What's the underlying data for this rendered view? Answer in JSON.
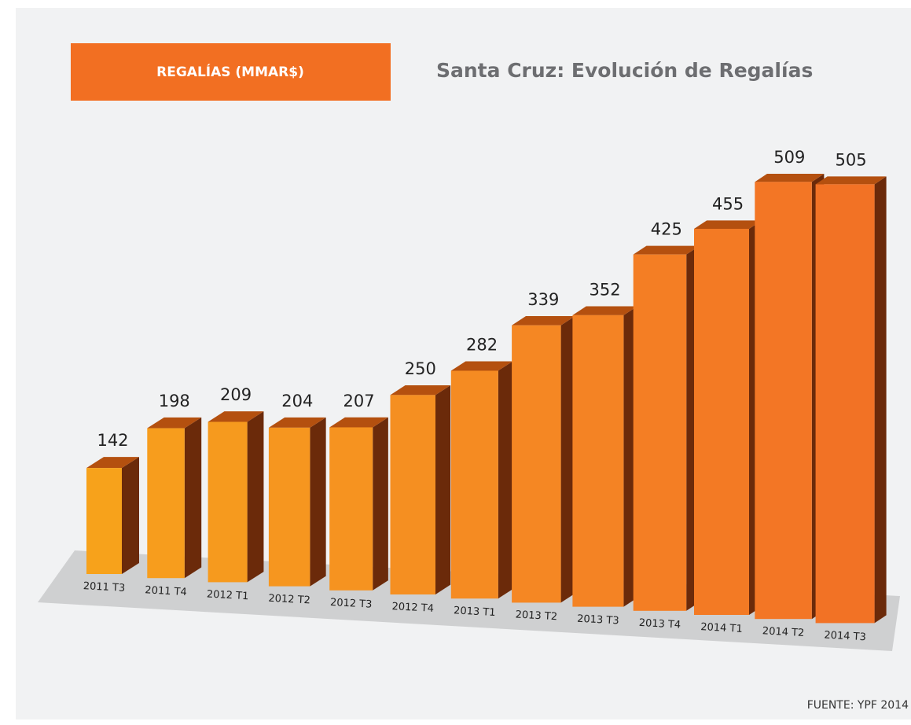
{
  "chart_data": {
    "type": "bar",
    "badge": "REGALÍAS (MMAR$)",
    "title": "Santa Cruz: Evolución de Regalías",
    "source": "FUENTE: YPF 2014",
    "categories": [
      "2011 T3",
      "2011 T4",
      "2012 T1",
      "2012 T2",
      "2012 T3",
      "2012 T4",
      "2013 T1",
      "2013 T2",
      "2013 T3",
      "2013 T4",
      "2014 T1",
      "2014 T2",
      "2014 T3"
    ],
    "values": [
      142,
      198,
      209,
      204,
      207,
      250,
      282,
      339,
      352,
      425,
      455,
      509,
      505
    ],
    "colors": [
      "#f7a21b",
      "#f79d1d",
      "#f69a1e",
      "#f6961f",
      "#f69320",
      "#f58f21",
      "#f58b22",
      "#f58723",
      "#f48324",
      "#f47e24",
      "#f37a24",
      "#f37625",
      "#f27225"
    ],
    "side_color": "#6b2a0a",
    "top_color": "#b4500f"
  }
}
